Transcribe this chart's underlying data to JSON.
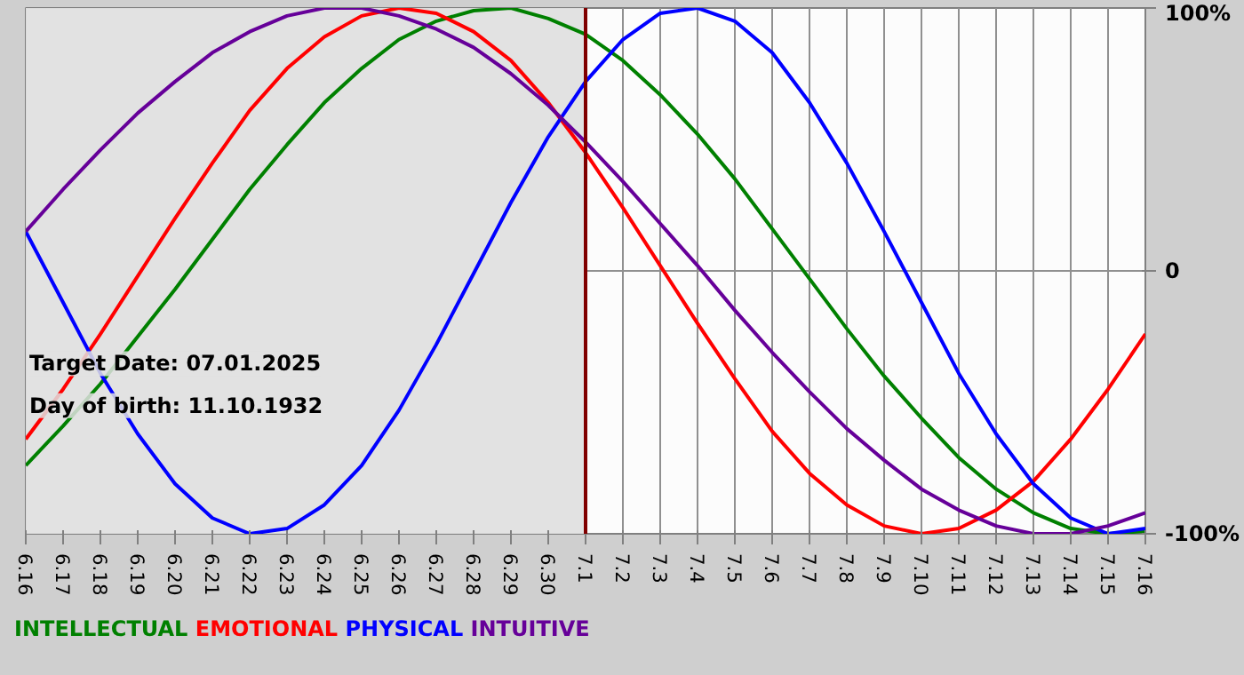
{
  "chart_data": {
    "type": "line",
    "categories": [
      "6.16",
      "6.17",
      "6.18",
      "6.19",
      "6.20",
      "6.21",
      "6.22",
      "6.23",
      "6.24",
      "6.25",
      "6.26",
      "6.27",
      "6.28",
      "6.29",
      "6.30",
      "7.1",
      "7.2",
      "7.3",
      "7.4",
      "7.5",
      "7.6",
      "7.7",
      "7.8",
      "7.9",
      "7.10",
      "7.11",
      "7.12",
      "7.13",
      "7.14",
      "7.15",
      "7.16"
    ],
    "series": [
      {
        "name": "INTELLECTUAL",
        "color": "#008000",
        "values": [
          -74,
          -59,
          -43,
          -25,
          -7,
          12,
          31,
          48,
          64,
          77,
          88,
          95,
          99,
          100,
          96,
          90,
          80,
          67,
          52,
          35,
          16,
          -3,
          -22,
          -40,
          -56,
          -71,
          -83,
          -92,
          -98,
          -100,
          -99
        ]
      },
      {
        "name": "EMOTIONAL",
        "color": "#ff0000",
        "values": [
          -64,
          -45,
          -24,
          -2,
          20,
          41,
          61,
          77,
          89,
          97,
          100,
          98,
          91,
          80,
          64,
          45,
          24,
          2,
          -20,
          -41,
          -61,
          -77,
          -89,
          -97,
          -100,
          -98,
          -91,
          -80,
          -64,
          -45,
          -24
        ]
      },
      {
        "name": "PHYSICAL",
        "color": "#0000ff",
        "values": [
          15,
          -12,
          -39,
          -62,
          -81,
          -94,
          -100,
          -98,
          -89,
          -74,
          -53,
          -28,
          -1,
          26,
          51,
          72,
          88,
          98,
          100,
          95,
          83,
          64,
          41,
          15,
          -12,
          -39,
          -62,
          -81,
          -94,
          -100,
          -98
        ]
      },
      {
        "name": "INTUITIVE",
        "color": "#660099",
        "values": [
          15,
          31,
          46,
          60,
          72,
          83,
          91,
          97,
          100,
          100,
          97,
          92,
          85,
          75,
          63,
          49,
          34,
          18,
          2,
          -15,
          -31,
          -46,
          -60,
          -72,
          -83,
          -91,
          -97,
          -100,
          -100,
          -97,
          -92
        ]
      }
    ],
    "ylim": [
      -100,
      100
    ],
    "yticks": [
      {
        "value": 100,
        "label": "100%"
      },
      0,
      {
        "value": -100,
        "label": "-100%"
      }
    ],
    "grid": true,
    "legend": "bottom",
    "ref_lines": [
      {
        "axis": "x",
        "value": "7.1",
        "color": "#800000"
      }
    ],
    "bands": [
      {
        "axis": "x",
        "from": "6.16",
        "to": "7.1",
        "color": "#e2e2e2"
      }
    ],
    "annotations": [
      "Target Date: 07.01.2025",
      "Day of birth: 11.10.1932"
    ]
  }
}
